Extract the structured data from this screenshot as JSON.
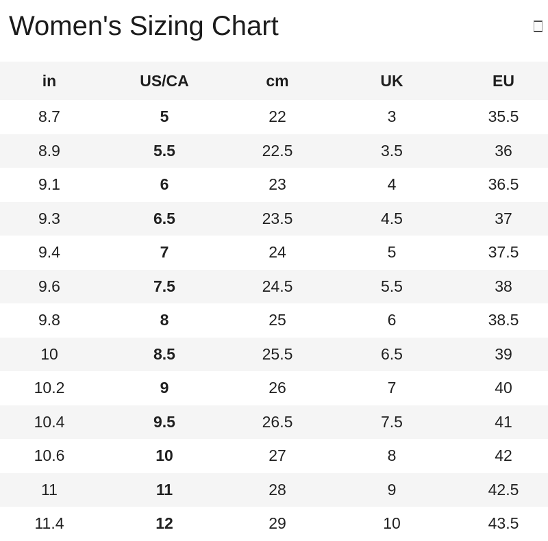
{
  "page": {
    "title": "Women's Sizing Chart",
    "header_icon_glyph": ""
  },
  "colors": {
    "header_bg": "#f5f5f5",
    "stripe_bg": "#f5f5f5",
    "row_bg": "#ffffff",
    "text": "#212121"
  },
  "table": {
    "columns": [
      "in",
      "US/CA",
      "cm",
      "UK",
      "EU"
    ],
    "emphasized_column": "US/CA",
    "rows": [
      [
        "8.7",
        "5",
        "22",
        "3",
        "35.5"
      ],
      [
        "8.9",
        "5.5",
        "22.5",
        "3.5",
        "36"
      ],
      [
        "9.1",
        "6",
        "23",
        "4",
        "36.5"
      ],
      [
        "9.3",
        "6.5",
        "23.5",
        "4.5",
        "37"
      ],
      [
        "9.4",
        "7",
        "24",
        "5",
        "37.5"
      ],
      [
        "9.6",
        "7.5",
        "24.5",
        "5.5",
        "38"
      ],
      [
        "9.8",
        "8",
        "25",
        "6",
        "38.5"
      ],
      [
        "10",
        "8.5",
        "25.5",
        "6.5",
        "39"
      ],
      [
        "10.2",
        "9",
        "26",
        "7",
        "40"
      ],
      [
        "10.4",
        "9.5",
        "26.5",
        "7.5",
        "41"
      ],
      [
        "10.6",
        "10",
        "27",
        "8",
        "42"
      ],
      [
        "11",
        "11",
        "28",
        "9",
        "42.5"
      ],
      [
        "11.4",
        "12",
        "29",
        "10",
        "43.5"
      ]
    ]
  }
}
